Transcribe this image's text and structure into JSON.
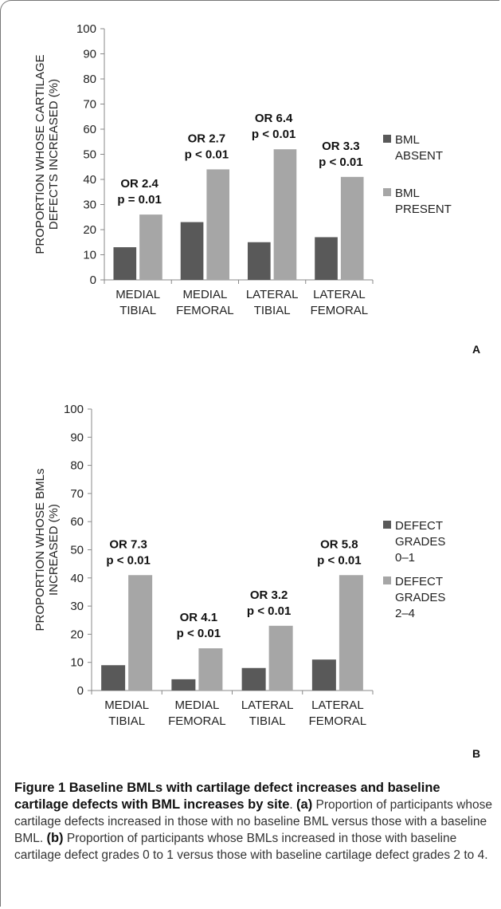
{
  "chart_data": [
    {
      "type": "bar",
      "panel_label": "A",
      "ylabel": "PROPORTION WHOSE CARTILAGE DEFECTS INCREASED (%)",
      "ylim": [
        0,
        100
      ],
      "yticks": [
        0,
        10,
        20,
        30,
        40,
        50,
        60,
        70,
        80,
        90,
        100
      ],
      "categories": [
        [
          "MEDIAL",
          "TIBIAL"
        ],
        [
          "MEDIAL",
          "FEMORAL"
        ],
        [
          "LATERAL",
          "TIBIAL"
        ],
        [
          "LATERAL",
          "FEMORAL"
        ]
      ],
      "series": [
        {
          "name": [
            "BML",
            "ABSENT"
          ],
          "color": "#595959",
          "values": [
            13,
            23,
            15,
            17
          ]
        },
        {
          "name": [
            "BML",
            "PRESENT"
          ],
          "color": "#a6a6a6",
          "values": [
            26,
            44,
            52,
            41
          ]
        }
      ],
      "annotations": [
        [
          "OR 2.4",
          "p = 0.01"
        ],
        [
          "OR 2.7",
          "p < 0.01"
        ],
        [
          "OR 6.4",
          "p < 0.01"
        ],
        [
          "OR 3.3",
          "p < 0.01"
        ]
      ],
      "legend_position": "right",
      "grid": false
    },
    {
      "type": "bar",
      "panel_label": "B",
      "ylabel": "PROPORTION WHOSE BMLs INCREASED (%)",
      "ylim": [
        0,
        100
      ],
      "yticks": [
        0,
        10,
        20,
        30,
        40,
        50,
        60,
        70,
        80,
        90,
        100
      ],
      "categories": [
        [
          "MEDIAL",
          "TIBIAL"
        ],
        [
          "MEDIAL",
          "FEMORAL"
        ],
        [
          "LATERAL",
          "TIBIAL"
        ],
        [
          "LATERAL",
          "FEMORAL"
        ]
      ],
      "series": [
        {
          "name": [
            "DEFECT",
            "GRADES",
            "0–1"
          ],
          "color": "#595959",
          "values": [
            9,
            4,
            8,
            11
          ]
        },
        {
          "name": [
            "DEFECT",
            "GRADES",
            "2–4"
          ],
          "color": "#a6a6a6",
          "values": [
            41,
            15,
            23,
            41
          ]
        }
      ],
      "annotations": [
        [
          "OR 7.3",
          "p < 0.01"
        ],
        [
          "OR 4.1",
          "p < 0.01"
        ],
        [
          "OR 3.2",
          "p < 0.01"
        ],
        [
          "OR 5.8",
          "p < 0.01"
        ]
      ],
      "legend_position": "right",
      "grid": false
    }
  ],
  "caption": {
    "lead": "Figure 1 Baseline BMLs with cartilage defect increases and baseline cartilage defects with BML increases by site",
    "sep": ". ",
    "a_label": "(a)",
    "a_text": " Proportion of participants whose cartilage defects increased in those with no baseline BML versus those with a baseline BML. ",
    "b_label": "(b)",
    "b_text": " Proportion of participants whose BMLs increased in those with baseline cartilage defect grades 0 to 1 versus those with baseline cartilage defect grades 2 to 4."
  }
}
